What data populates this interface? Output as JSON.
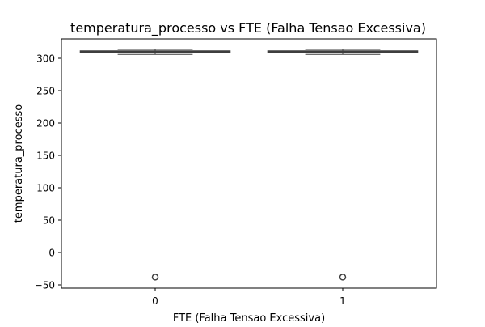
{
  "chart_data": {
    "type": "box",
    "title": "temperatura_processo vs FTE (Falha Tensao Excessiva)",
    "xlabel": "FTE (Falha Tensao Excessiva)",
    "ylabel": "temperatura_processo",
    "categories": [
      "0",
      "1"
    ],
    "ylim": [
      -55,
      330
    ],
    "yticks": [
      -50,
      0,
      50,
      100,
      150,
      200,
      250,
      300
    ],
    "grid": false,
    "legend": "none",
    "boxes": [
      {
        "category": "0",
        "whisker_low": 305.9,
        "q1": 308.8,
        "median": 310.0,
        "q3": 311.2,
        "whisker_high": 313.8,
        "outliers": [
          -38
        ]
      },
      {
        "category": "1",
        "whisker_low": 305.9,
        "q1": 308.8,
        "median": 310.0,
        "q3": 311.2,
        "whisker_high": 313.8,
        "outliers": [
          -38
        ]
      }
    ],
    "colors": {
      "box_edge": "#3f3f3f",
      "box_fill": "#3f3f3f",
      "axes": "#000000"
    }
  }
}
